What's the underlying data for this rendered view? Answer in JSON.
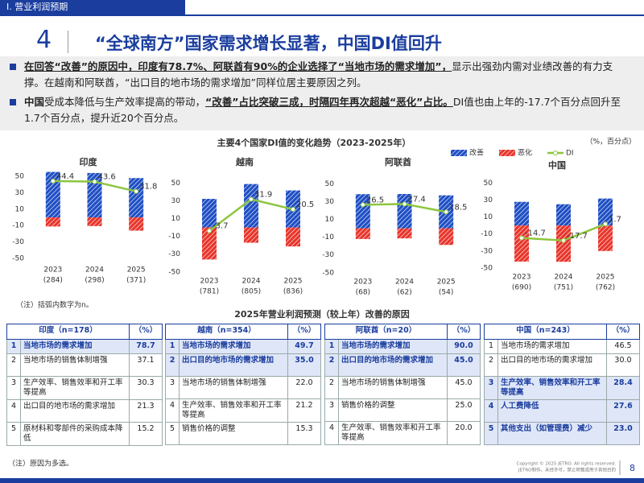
{
  "header": {
    "section": "Ⅰ. 营业利润预期",
    "number": "4",
    "title": "“全球南方”国家需求增长显著，中国DI值回升"
  },
  "bullets": [
    [
      "在回答“改善”的原因中，印度有78.7%、阿联酋有90%的企业选择了“当地市场的需求增加”，",
      "显示出强劲内需对业绩改善的有力支撑。在越南和阿联酋，“出口目的地市场的需求增加”同样位居主要原因之列。"
    ],
    [
      "中国",
      "受成本降低与生产效率提高的带动，",
      "“改善”占比突破三成，时隔四年再次超越“恶化”占比。",
      "DI值也由上年的-17.7个百分点回升至1.7个百分点，提升近20个百分点。"
    ]
  ],
  "charts_section": {
    "title": "主要4个国家DI值的变化趋势（2023-2025年）",
    "unit": "（%，百分点）",
    "note": "（注）括弧内数字为n。"
  },
  "chart_data": [
    {
      "type": "bar-line",
      "title": "印度",
      "categories": [
        "2023",
        "2024",
        "2025"
      ],
      "n_labels": [
        "(284)",
        "(298)",
        "(371)"
      ],
      "series": [
        {
          "name": "改善",
          "color": "#1f4fc4",
          "values": [
            55.5,
            54.2,
            48.0
          ]
        },
        {
          "name": "恶化",
          "color": "#e8352b",
          "values": [
            -11.1,
            -10.6,
            -16.2
          ]
        },
        {
          "name": "DI",
          "color": "#8dc63f",
          "values": [
            44.4,
            43.6,
            31.8
          ]
        }
      ],
      "ylim": [
        -55,
        60
      ],
      "yticks": [
        50,
        30,
        10,
        -10,
        -30,
        -50
      ]
    },
    {
      "type": "bar-line",
      "title": "越南",
      "categories": [
        "2023",
        "2024",
        "2025"
      ],
      "n_labels": [
        "(781)",
        "(805)",
        "(836)"
      ],
      "series": [
        {
          "name": "改善",
          "color": "#1f4fc4",
          "values": [
            32.3,
            49.0,
            41.8
          ]
        },
        {
          "name": "恶化",
          "color": "#e8352b",
          "values": [
            -36.0,
            -17.1,
            -21.3
          ]
        },
        {
          "name": "DI",
          "color": "#8dc63f",
          "values": [
            -3.7,
            31.9,
            20.5
          ]
        }
      ],
      "ylim": [
        -52,
        55
      ],
      "yticks": [
        50,
        30,
        10,
        -10,
        -30,
        -50
      ]
    },
    {
      "type": "bar-line",
      "title": "阿联酋",
      "categories": [
        "2023",
        "2024",
        "2025"
      ],
      "n_labels": [
        "(68)",
        "(62)",
        "(54)"
      ],
      "series": [
        {
          "name": "改善",
          "color": "#1f4fc4",
          "values": [
            38.5,
            38.7,
            37.2
          ]
        },
        {
          "name": "恶化",
          "color": "#e8352b",
          "values": [
            -12.0,
            -11.3,
            -18.7
          ]
        },
        {
          "name": "DI",
          "color": "#8dc63f",
          "values": [
            26.5,
            27.4,
            18.5
          ]
        }
      ],
      "ylim": [
        -52,
        55
      ],
      "yticks": [
        50,
        30,
        10,
        -10,
        -30,
        -50
      ]
    },
    {
      "type": "bar-line",
      "title": "中国",
      "categories": [
        "2023",
        "2024",
        "2025"
      ],
      "n_labels": [
        "(690)",
        "(751)",
        "(762)"
      ],
      "series": [
        {
          "name": "改善",
          "color": "#1f4fc4",
          "values": [
            27.8,
            25.0,
            31.7
          ]
        },
        {
          "name": "恶化",
          "color": "#e8352b",
          "values": [
            -42.5,
            -42.7,
            -30.0
          ]
        },
        {
          "name": "DI",
          "color": "#8dc63f",
          "values": [
            -14.7,
            -17.7,
            1.7
          ]
        }
      ],
      "ylim": [
        -52,
        55
      ],
      "yticks": [
        50,
        30,
        10,
        -10,
        -30,
        -50
      ]
    }
  ],
  "tables_section": {
    "title": "2025年营业利润预测（较上年）改善的原因",
    "note": "（注）原因为多选。"
  },
  "tables": [
    {
      "header": [
        "印度（n=178）",
        "（%）"
      ],
      "rows": [
        [
          "1",
          "当地市场的需求增加",
          "78.7"
        ],
        [
          "2",
          "当地市场的销售体制增强",
          "37.1"
        ],
        [
          "3",
          "生产效率、销售效率和开工率等提高",
          "30.3"
        ],
        [
          "4",
          "出口目的地市场的需求增加",
          "21.3"
        ],
        [
          "5",
          "原材料和零部件的采购成本降低",
          "15.2"
        ]
      ]
    },
    {
      "header": [
        "越南（n=354）",
        "（%）"
      ],
      "rows": [
        [
          "1",
          "当地市场的需求增加",
          "49.7"
        ],
        [
          "2",
          "出口目的地市场的需求增加",
          "35.0"
        ],
        [
          "3",
          "当地市场的销售体制增强",
          "22.0"
        ],
        [
          "4",
          "生产效率、销售效率和开工率等提高",
          "21.2"
        ],
        [
          "5",
          "销售价格的调整",
          "15.3"
        ]
      ]
    },
    {
      "header": [
        "阿联酋（n=20）",
        "（%）"
      ],
      "rows": [
        [
          "1",
          "当地市场的需求增加",
          "90.0"
        ],
        [
          "2",
          "出口目的地市场的需求增加",
          "45.0"
        ],
        [
          "2",
          "当地市场的销售体制增强",
          "45.0"
        ],
        [
          "3",
          "销售价格的调整",
          "25.0"
        ],
        [
          "4",
          "生产效率、销售效率和开工率等提高",
          "20.0"
        ]
      ]
    },
    {
      "header": [
        "中国（n=243）",
        "（%）"
      ],
      "rows": [
        [
          "1",
          "当地市场的需求增加",
          "46.5"
        ],
        [
          "2",
          "出口目的地市场的需求增加",
          "30.0"
        ],
        [
          "3",
          "生产效率、销售效率和开工率等提高",
          "28.4"
        ],
        [
          "4",
          "人工费降低",
          "27.6"
        ],
        [
          "5",
          "其他支出（如管理费）减少",
          "23.0"
        ]
      ]
    }
  ],
  "footer": {
    "copyright": "Copyright © 2025 JETRO. All rights reserved.",
    "notice": "JETRO制作。未经许可，禁止转载或用于其他目的",
    "page": "8"
  }
}
